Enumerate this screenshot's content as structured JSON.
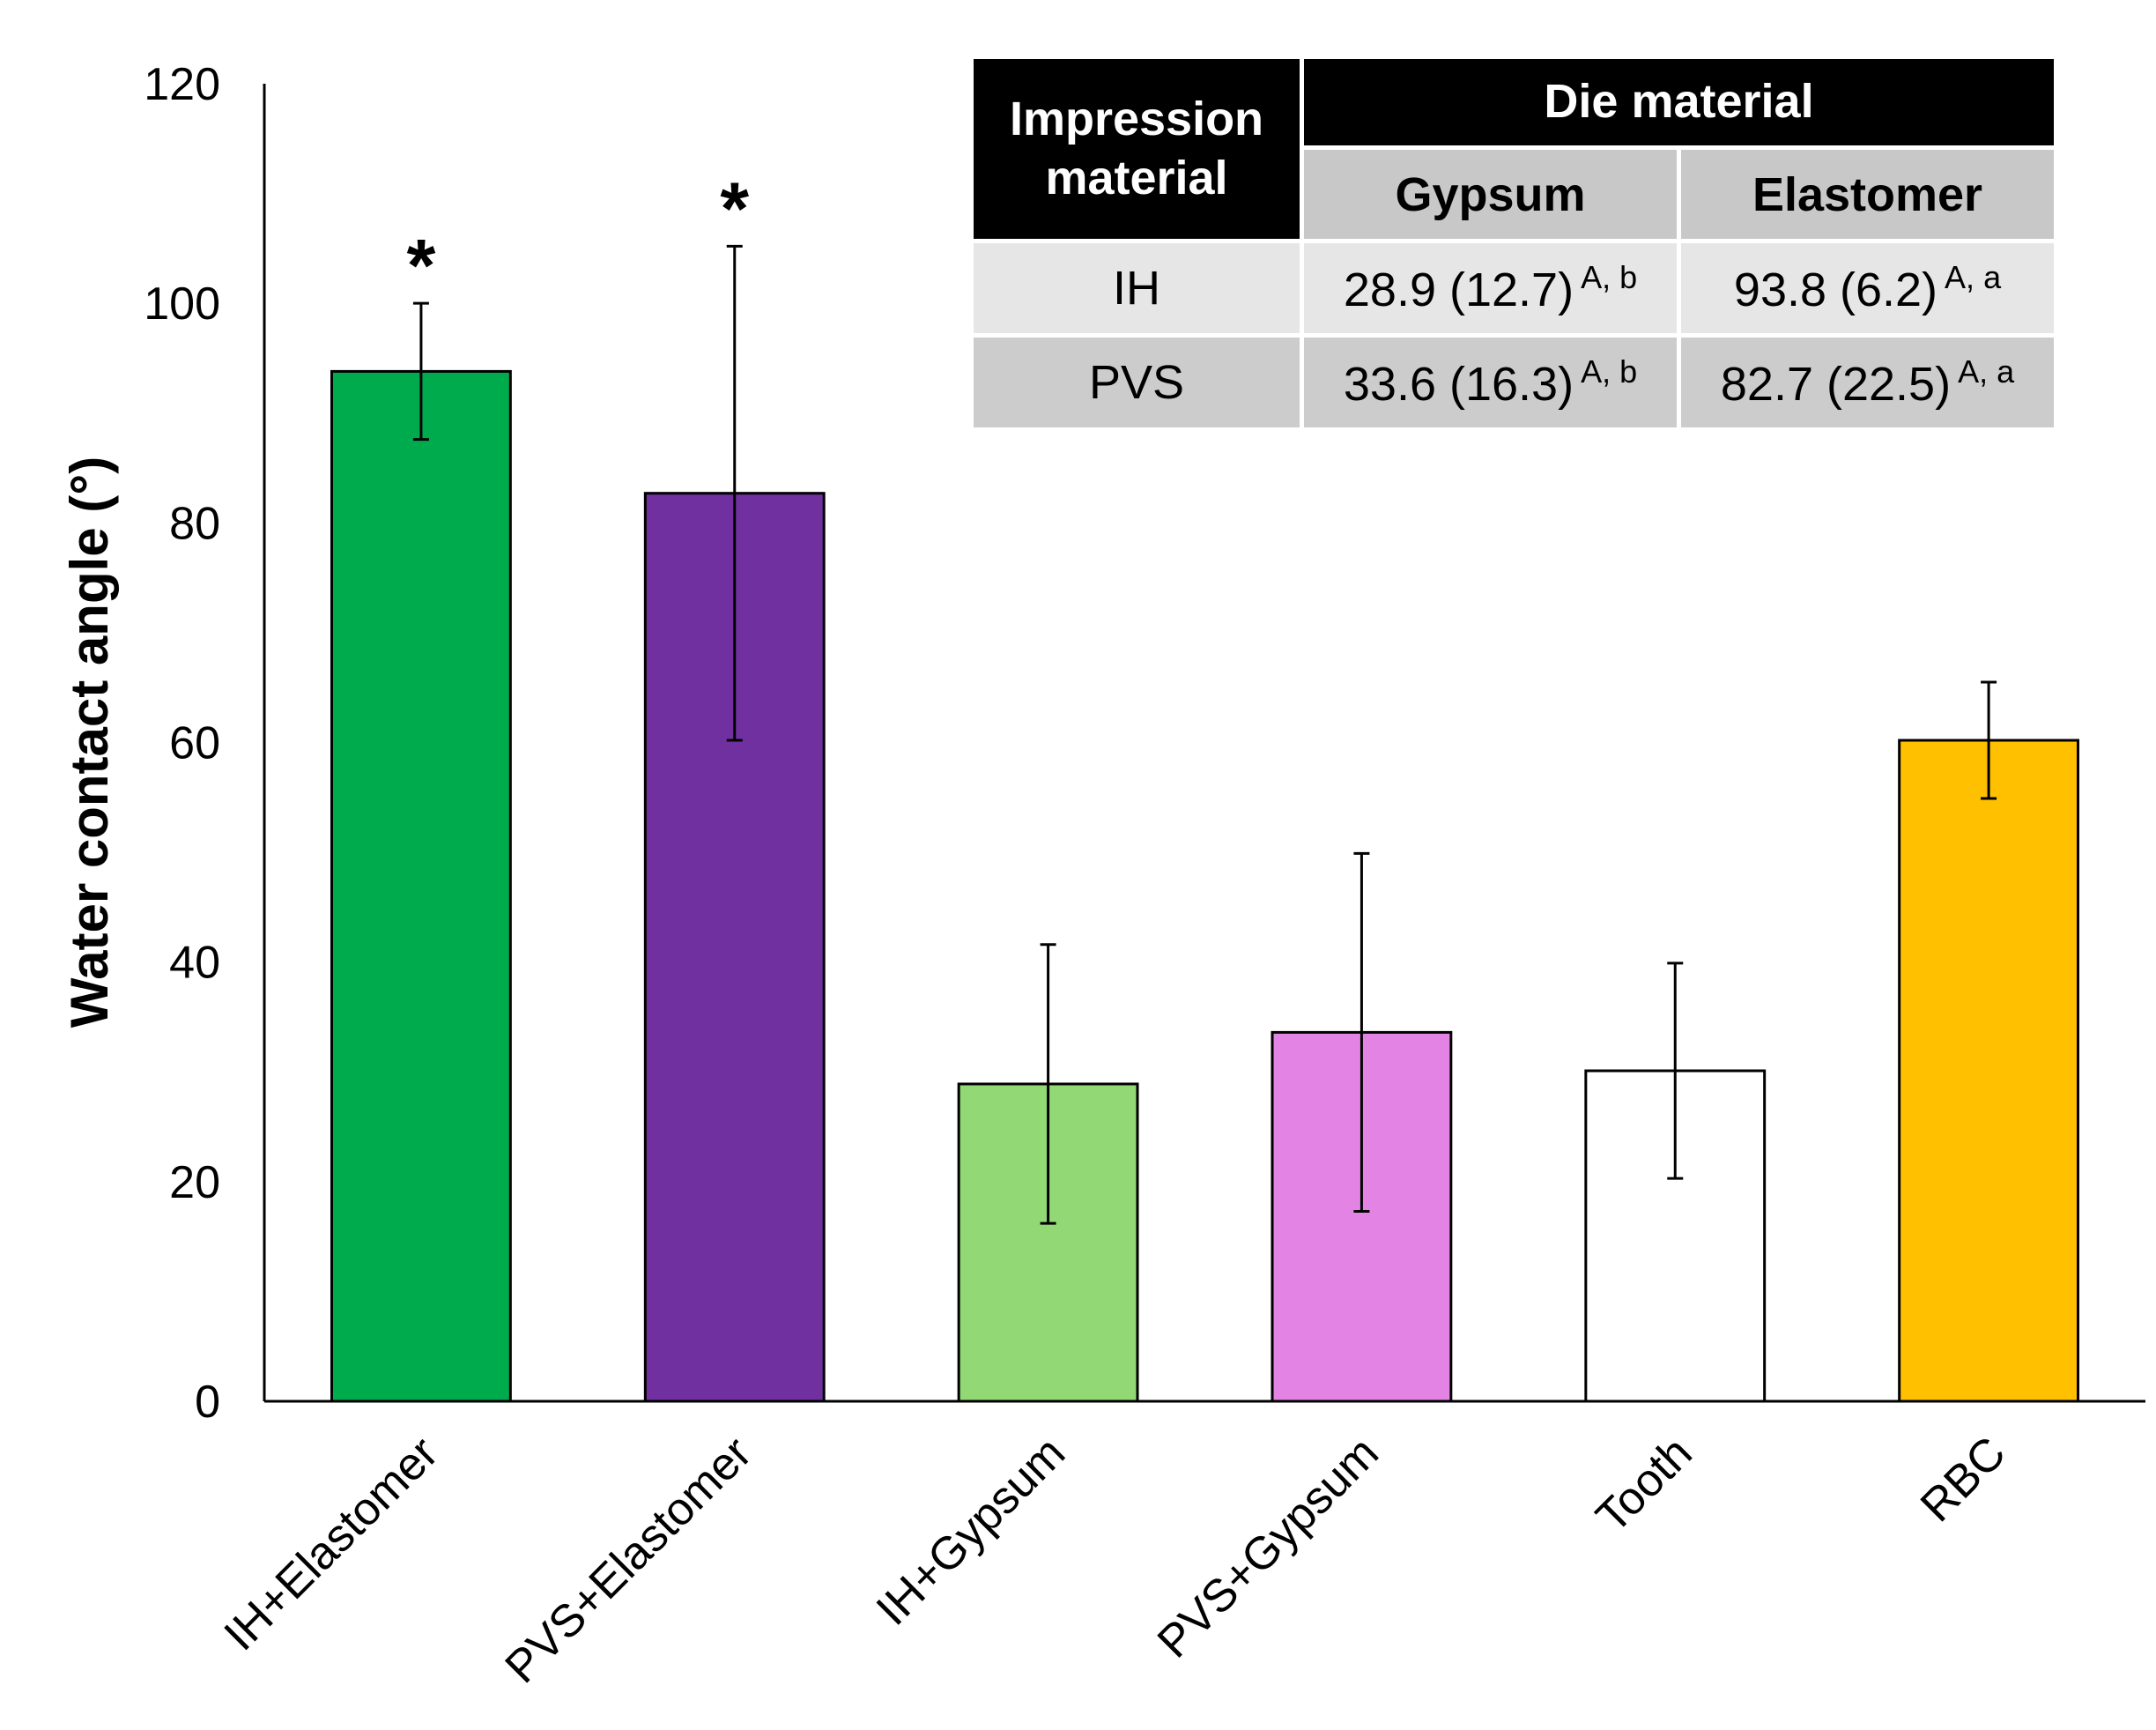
{
  "chart_data": {
    "type": "bar",
    "xlabel": "",
    "ylabel": "Water contact angle (°)",
    "ylim": [
      0,
      120
    ],
    "yticks": [
      "0",
      "20",
      "40",
      "60",
      "80",
      "100",
      "120"
    ],
    "grid": false,
    "categories": [
      "IH+Elastomer",
      "PVS+Elastomer",
      "IH+Gypsum",
      "PVS+Gypsum",
      "Tooth",
      "RBC"
    ],
    "values": [
      93.8,
      82.7,
      28.9,
      33.6,
      30.1,
      60.2
    ],
    "error": [
      6.2,
      22.5,
      12.7,
      16.3,
      9.8,
      5.3
    ],
    "colors": [
      "#00ab4e",
      "#7030a0",
      "#92d975",
      "#e383e3",
      "#ffffff",
      "#ffc000"
    ],
    "significance": [
      "*",
      "*",
      "",
      "",
      "",
      ""
    ]
  },
  "table": {
    "header_row": "Impression material",
    "header_group": "Die material",
    "columns": [
      "Gypsum",
      "Elastomer"
    ],
    "rows": [
      {
        "label": "IH",
        "cells": [
          {
            "value": "28.9 (12.7)",
            "sup": "A, b"
          },
          {
            "value": "93.8 (6.2)",
            "sup": "A, a"
          }
        ]
      },
      {
        "label": "PVS",
        "cells": [
          {
            "value": "33.6 (16.3)",
            "sup": "A, b"
          },
          {
            "value": "82.7 (22.5)",
            "sup": "A, a"
          }
        ]
      }
    ]
  }
}
